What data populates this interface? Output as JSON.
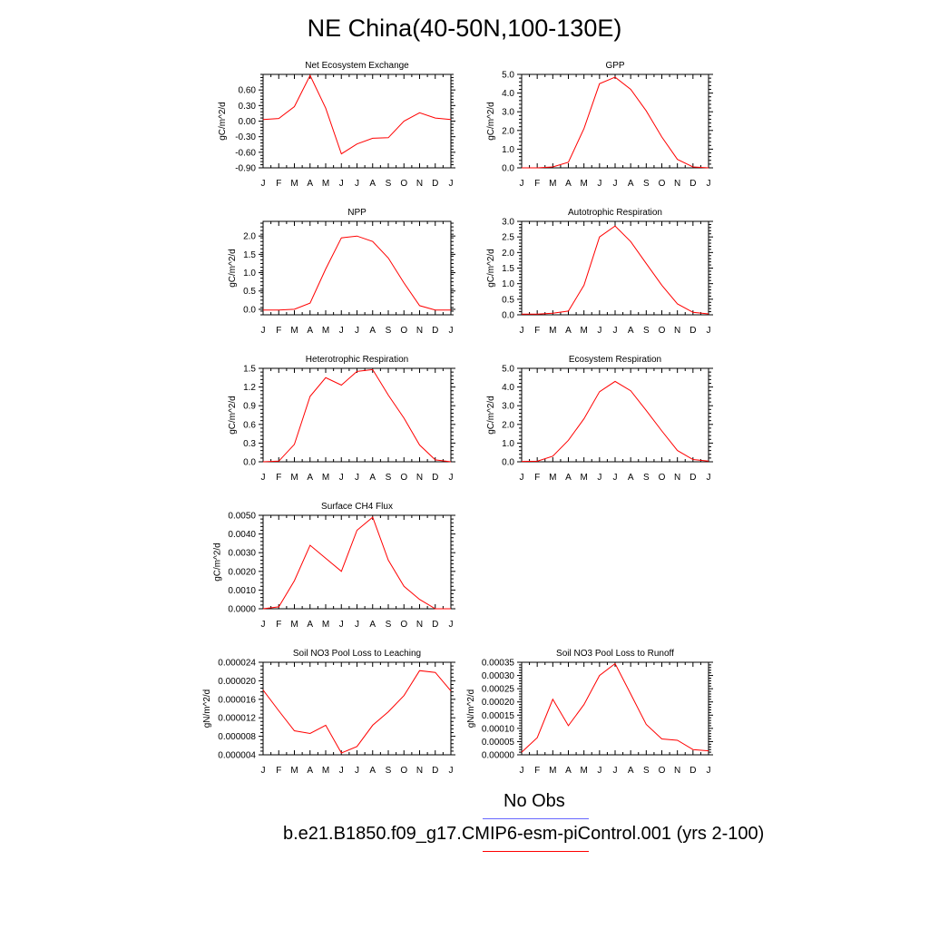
{
  "title": "NE China(40-50N,100-130E)",
  "legend": {
    "entries": [
      {
        "label": "No Obs",
        "color": "#6666ff"
      },
      {
        "label": "b.e21.B1850.f09_g17.CMIP6-esm-piControl.001 (yrs 2-100)",
        "color": "#ff0000"
      }
    ]
  },
  "line_color": "#ff0000",
  "chart_data": [
    {
      "type": "line",
      "title": "Net Ecosystem Exchange",
      "ylabel": "gC/m^2/d",
      "categories": [
        "J",
        "F",
        "M",
        "A",
        "M",
        "J",
        "J",
        "A",
        "S",
        "O",
        "N",
        "D",
        "J"
      ],
      "ylim": [
        -0.9,
        0.9
      ],
      "yticks": [
        -0.9,
        -0.6,
        -0.3,
        0.0,
        0.3,
        0.6
      ],
      "ytick_labels": [
        "-0.90",
        "-0.60",
        "-0.30",
        "0.00",
        "0.30",
        "0.60"
      ],
      "series": [
        {
          "values": [
            0.03,
            0.05,
            0.28,
            0.88,
            0.25,
            -0.63,
            -0.44,
            -0.33,
            -0.32,
            0.0,
            0.16,
            0.06,
            0.03
          ]
        }
      ]
    },
    {
      "type": "line",
      "title": "GPP",
      "ylabel": "gC/m^2/d",
      "categories": [
        "J",
        "F",
        "M",
        "A",
        "M",
        "J",
        "J",
        "A",
        "S",
        "O",
        "N",
        "D",
        "J"
      ],
      "ylim": [
        0,
        5
      ],
      "yticks": [
        0,
        1,
        2,
        3,
        4,
        5
      ],
      "ytick_labels": [
        "0.0",
        "1.0",
        "2.0",
        "3.0",
        "4.0",
        "5.0"
      ],
      "series": [
        {
          "values": [
            0.0,
            0.0,
            0.05,
            0.3,
            2.1,
            4.5,
            4.85,
            4.2,
            3.05,
            1.65,
            0.45,
            0.05,
            0.0
          ]
        }
      ]
    },
    {
      "type": "line",
      "title": "NPP",
      "ylabel": "gC/m^2/d",
      "categories": [
        "J",
        "F",
        "M",
        "A",
        "M",
        "J",
        "J",
        "A",
        "S",
        "O",
        "N",
        "D",
        "J"
      ],
      "ylim": [
        -0.15,
        2.4
      ],
      "yticks": [
        0.0,
        0.5,
        1.0,
        1.5,
        2.0
      ],
      "ytick_labels": [
        "0.0",
        "0.5",
        "1.0",
        "1.5",
        "2.0"
      ],
      "series": [
        {
          "values": [
            -0.02,
            -0.02,
            0.0,
            0.17,
            1.1,
            1.95,
            2.0,
            1.85,
            1.4,
            0.72,
            0.1,
            -0.02,
            -0.02
          ]
        }
      ]
    },
    {
      "type": "line",
      "title": "Autotrophic Respiration",
      "ylabel": "gC/m^2/d",
      "categories": [
        "J",
        "F",
        "M",
        "A",
        "M",
        "J",
        "J",
        "A",
        "S",
        "O",
        "N",
        "D",
        "J"
      ],
      "ylim": [
        0,
        3
      ],
      "yticks": [
        0,
        0.5,
        1.0,
        1.5,
        2.0,
        2.5,
        3.0
      ],
      "ytick_labels": [
        "0.0",
        "0.5",
        "1.0",
        "1.5",
        "2.0",
        "2.5",
        "3.0"
      ],
      "series": [
        {
          "values": [
            0.02,
            0.02,
            0.05,
            0.12,
            0.95,
            2.5,
            2.85,
            2.35,
            1.65,
            0.95,
            0.35,
            0.08,
            0.03
          ]
        }
      ]
    },
    {
      "type": "line",
      "title": "Heterotrophic Respiration",
      "ylabel": "gC/m^2/d",
      "categories": [
        "J",
        "F",
        "M",
        "A",
        "M",
        "J",
        "J",
        "A",
        "S",
        "O",
        "N",
        "D",
        "J"
      ],
      "ylim": [
        0,
        1.5
      ],
      "yticks": [
        0,
        0.3,
        0.6,
        0.9,
        1.2,
        1.5
      ],
      "ytick_labels": [
        "0.0",
        "0.3",
        "0.6",
        "0.9",
        "1.2",
        "1.5"
      ],
      "series": [
        {
          "values": [
            0.0,
            0.01,
            0.28,
            1.05,
            1.35,
            1.23,
            1.45,
            1.48,
            1.07,
            0.7,
            0.27,
            0.03,
            0.0
          ]
        }
      ]
    },
    {
      "type": "line",
      "title": "Ecosystem Respiration",
      "ylabel": "gC/m^2/d",
      "categories": [
        "J",
        "F",
        "M",
        "A",
        "M",
        "J",
        "J",
        "A",
        "S",
        "O",
        "N",
        "D",
        "J"
      ],
      "ylim": [
        0,
        5
      ],
      "yticks": [
        0,
        1,
        2,
        3,
        4,
        5
      ],
      "ytick_labels": [
        "0.0",
        "1.0",
        "2.0",
        "3.0",
        "4.0",
        "5.0"
      ],
      "series": [
        {
          "values": [
            0.02,
            0.03,
            0.3,
            1.15,
            2.3,
            3.75,
            4.3,
            3.8,
            2.75,
            1.65,
            0.6,
            0.12,
            0.04
          ]
        }
      ]
    },
    {
      "type": "line",
      "title": "Surface CH4 Flux",
      "ylabel": "gC/m^2/d",
      "categories": [
        "J",
        "F",
        "M",
        "A",
        "M",
        "J",
        "J",
        "A",
        "S",
        "O",
        "N",
        "D",
        "J"
      ],
      "ylim": [
        0,
        0.005
      ],
      "yticks": [
        0,
        0.001,
        0.002,
        0.003,
        0.004,
        0.005
      ],
      "ytick_labels": [
        "0.0000",
        "0.0010",
        "0.0020",
        "0.0030",
        "0.0040",
        "0.0050"
      ],
      "series": [
        {
          "values": [
            0.0,
            0.0001,
            0.0015,
            0.0034,
            0.0027,
            0.002,
            0.0042,
            0.0049,
            0.0026,
            0.0012,
            0.0005,
            0.0,
            0.0
          ]
        }
      ]
    },
    {
      "type": "line",
      "title": "Soil NO3 Pool Loss to Leaching",
      "ylabel": "gN/m^2/d",
      "categories": [
        "J",
        "F",
        "M",
        "A",
        "M",
        "J",
        "J",
        "A",
        "S",
        "O",
        "N",
        "D",
        "J"
      ],
      "ylim": [
        4e-06,
        2.4e-05
      ],
      "yticks": [
        4e-06,
        8e-06,
        1.2e-05,
        1.6e-05,
        2e-05,
        2.4e-05
      ],
      "ytick_labels": [
        "0.000004",
        "0.000008",
        "0.000012",
        "0.000016",
        "0.000020",
        "0.000024"
      ],
      "series": [
        {
          "values": [
            1.8e-05,
            1.35e-05,
            9.2e-06,
            8.6e-06,
            1.04e-05,
            4.4e-06,
            5.8e-06,
            1.04e-05,
            1.33e-05,
            1.68e-05,
            2.22e-05,
            2.18e-05,
            1.78e-05
          ]
        }
      ]
    },
    {
      "type": "line",
      "title": "Soil NO3 Pool Loss to Runoff",
      "ylabel": "gN/m^2/d",
      "categories": [
        "J",
        "F",
        "M",
        "A",
        "M",
        "J",
        "J",
        "A",
        "S",
        "O",
        "N",
        "D",
        "J"
      ],
      "ylim": [
        0,
        0.00035
      ],
      "yticks": [
        0,
        5e-05,
        0.0001,
        0.00015,
        0.0002,
        0.00025,
        0.0003,
        0.00035
      ],
      "ytick_labels": [
        "0.00000",
        "0.00005",
        "0.00010",
        "0.00015",
        "0.00020",
        "0.00025",
        "0.00030",
        "0.00035"
      ],
      "series": [
        {
          "values": [
            1e-05,
            6.5e-05,
            0.00021,
            0.00011,
            0.00019,
            0.0003,
            0.000345,
            0.00023,
            0.000115,
            6e-05,
            5.5e-05,
            2e-05,
            1.5e-05
          ]
        }
      ]
    }
  ]
}
